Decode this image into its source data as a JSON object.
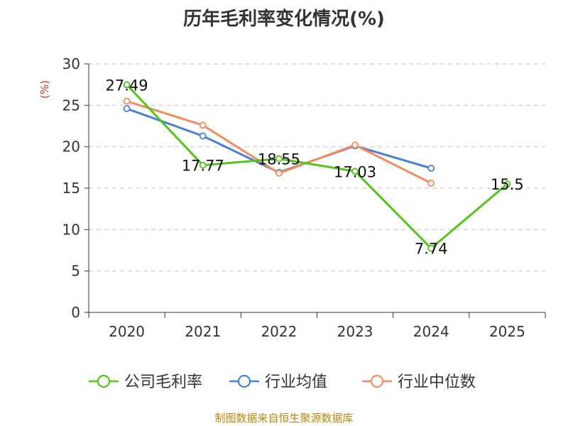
{
  "chart_data": {
    "type": "line",
    "title": "历年毛利率变化情况(%)",
    "ylabel": "(%)",
    "xlabel": "",
    "categories": [
      "2020",
      "2021",
      "2022",
      "2023",
      "2024",
      "2025"
    ],
    "ylim": [
      0,
      30
    ],
    "yticks": [
      0,
      5,
      10,
      15,
      20,
      25,
      30
    ],
    "grid": true,
    "legend_position": "bottom",
    "series": [
      {
        "name": "公司毛利率",
        "color": "#52c41a",
        "values": [
          27.49,
          17.77,
          18.55,
          17.03,
          7.74,
          15.5
        ],
        "labels": [
          "27.49",
          "17.77",
          "18.55",
          "17.03",
          "7.74",
          "15.5"
        ]
      },
      {
        "name": "行业均值",
        "color": "#4a7fd6",
        "values": [
          24.6,
          21.3,
          16.9,
          20.1,
          17.4,
          null
        ]
      },
      {
        "name": "行业中位数",
        "color": "#f28c5a",
        "values": [
          25.5,
          22.6,
          16.8,
          20.2,
          15.6,
          null
        ]
      }
    ]
  },
  "source": "制图数据来自恒生聚源数据库"
}
